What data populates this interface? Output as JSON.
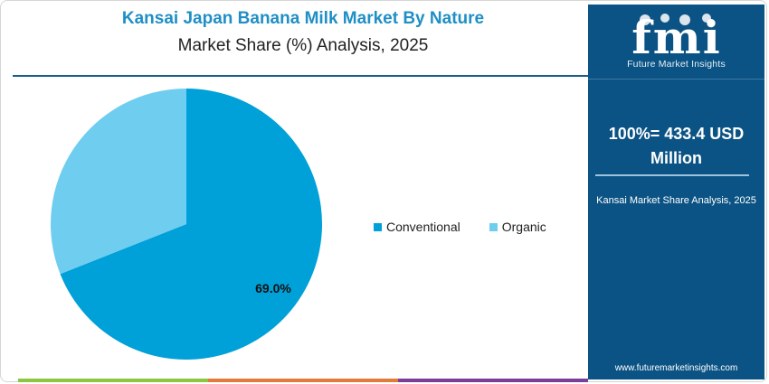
{
  "chart_data": {
    "type": "pie",
    "title": "Kansai Japan Banana Milk Market By Nature",
    "subtitle": "Market Share (%) Analysis, 2025",
    "series": [
      {
        "name": "Conventional",
        "value": 69.0,
        "color": "#00a0d8"
      },
      {
        "name": "Organic",
        "value": 31.0,
        "color": "#6fcdf0"
      }
    ],
    "data_labels": [
      "69.0%"
    ],
    "legend_position": "right"
  },
  "sidebar": {
    "brand_caption": "Future Market Insights",
    "total_line1": "100%= 433.4 USD",
    "total_line2": "Million",
    "caption": "Kansai Market Share Analysis, 2025",
    "website": "www.futuremarketinsights.com",
    "background_color": "#0b5384"
  },
  "footer_bar_colors": [
    "#8dc63f",
    "#e07b39",
    "#7b3f98"
  ]
}
